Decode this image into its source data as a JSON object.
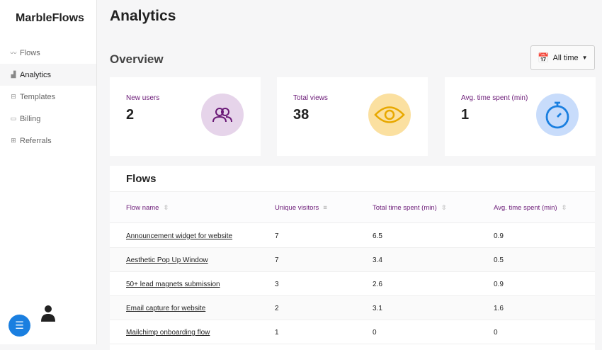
{
  "app": {
    "name": "MarbleFlows"
  },
  "sidebar": {
    "items": [
      {
        "label": "Flows",
        "icon": "chart-line-icon"
      },
      {
        "label": "Analytics",
        "icon": "bar-chart-icon",
        "active": true
      },
      {
        "label": "Templates",
        "icon": "layout-icon"
      },
      {
        "label": "Billing",
        "icon": "credit-card-icon"
      },
      {
        "label": "Referrals",
        "icon": "gift-icon"
      }
    ]
  },
  "page": {
    "title": "Analytics",
    "overview": "Overview",
    "range": "All time"
  },
  "stats": [
    {
      "label": "New users",
      "value": "2",
      "color": "#e6d4ea"
    },
    {
      "label": "Total views",
      "value": "38",
      "color": "#fbe0a0"
    },
    {
      "label": "Avg. time spent (min)",
      "value": "1",
      "color": "#c8dcfb"
    }
  ],
  "flows": {
    "title": "Flows",
    "columns": [
      "Flow name",
      "Unique visitors",
      "Total time spent (min)",
      "Avg. time spent (min)"
    ],
    "rows": [
      [
        "Announcement widget for website",
        "7",
        "6.5",
        "0.9"
      ],
      [
        "Aesthetic Pop Up Window",
        "7",
        "3.4",
        "0.5"
      ],
      [
        "50+ lead magnets submission",
        "3",
        "2.6",
        "0.9"
      ],
      [
        "Email capture for website",
        "2",
        "3.1",
        "1.6"
      ],
      [
        "Mailchimp onboarding flow",
        "1",
        "0",
        "0"
      ]
    ]
  }
}
